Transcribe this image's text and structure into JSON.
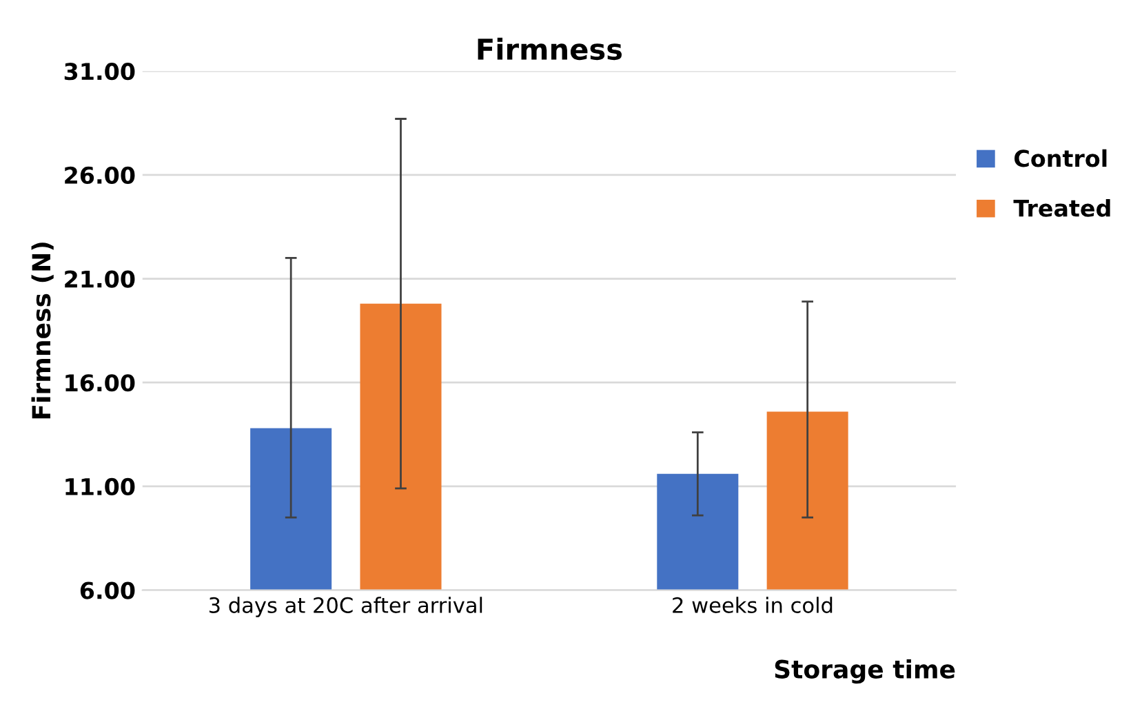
{
  "chart_data": {
    "type": "bar",
    "title": "Firmness",
    "xlabel": "Storage time",
    "ylabel": "Firmness (N)",
    "categories": [
      "3 days at 20C after arrival",
      "2 weeks in cold"
    ],
    "series": [
      {
        "name": "Control",
        "color": "#4472c4",
        "values": [
          13.8,
          11.6
        ],
        "errors": [
          [
            9.5,
            22.0
          ],
          [
            9.6,
            13.6
          ]
        ]
      },
      {
        "name": "Treated",
        "color": "#ed7d31",
        "values": [
          19.8,
          14.6
        ],
        "errors": [
          [
            10.9,
            28.7
          ],
          [
            9.5,
            19.9
          ]
        ]
      }
    ],
    "ylim": [
      6,
      31
    ],
    "yticks": [
      {
        "value": 6,
        "label": "6.00"
      },
      {
        "value": 11,
        "label": "11.00"
      },
      {
        "value": 16,
        "label": "16.00"
      },
      {
        "value": 21,
        "label": "21.00"
      },
      {
        "value": 26,
        "label": "26.00"
      },
      {
        "value": 31,
        "label": "31.00"
      }
    ],
    "grid": "y",
    "legend": "right"
  }
}
